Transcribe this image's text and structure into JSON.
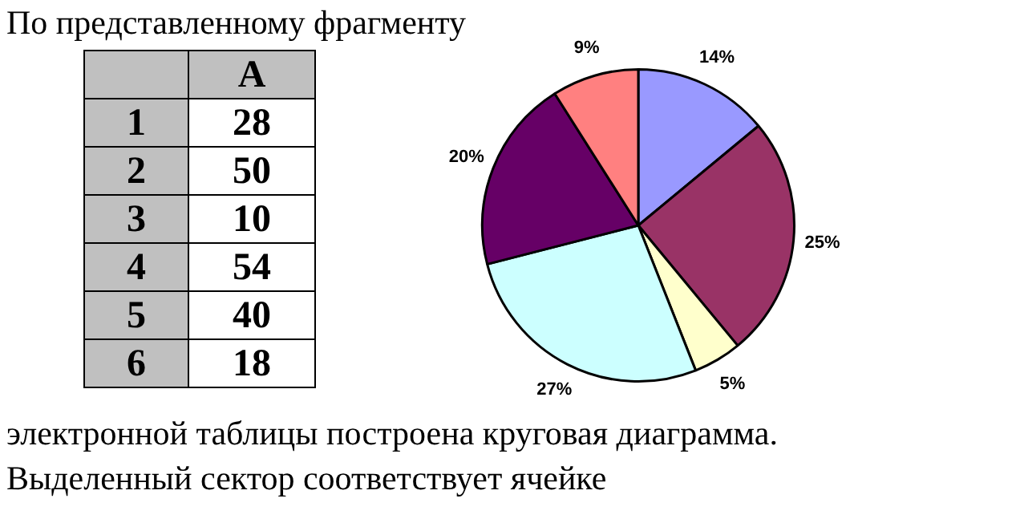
{
  "chart_data": [
    {
      "type": "heatmap",
      "title": "По представленному фрагменту",
      "categories": [
        "A"
      ],
      "y_categories": [
        "1",
        "2",
        "3",
        "4",
        "5",
        "6"
      ],
      "cells": [
        [
          28
        ],
        [
          50
        ],
        [
          10
        ],
        [
          54
        ],
        [
          40
        ],
        [
          18
        ]
      ],
      "data_labels": true
    },
    {
      "type": "pie",
      "categories": [
        null,
        null,
        null,
        null,
        null,
        null
      ],
      "values": [
        14,
        25,
        5,
        27,
        20,
        9
      ],
      "value_labels": [
        "14%",
        "25%",
        "5%",
        "27%",
        "20%",
        "9%"
      ],
      "colors": [
        "#9999ff",
        "#993366",
        "#ffffcc",
        "#ccffff",
        "#660066",
        "#ff8080"
      ],
      "annotations": [
        "электронной таблицы построена круговая диаграмма.",
        "Выделенный сектор соответствует ячейке"
      ]
    }
  ]
}
